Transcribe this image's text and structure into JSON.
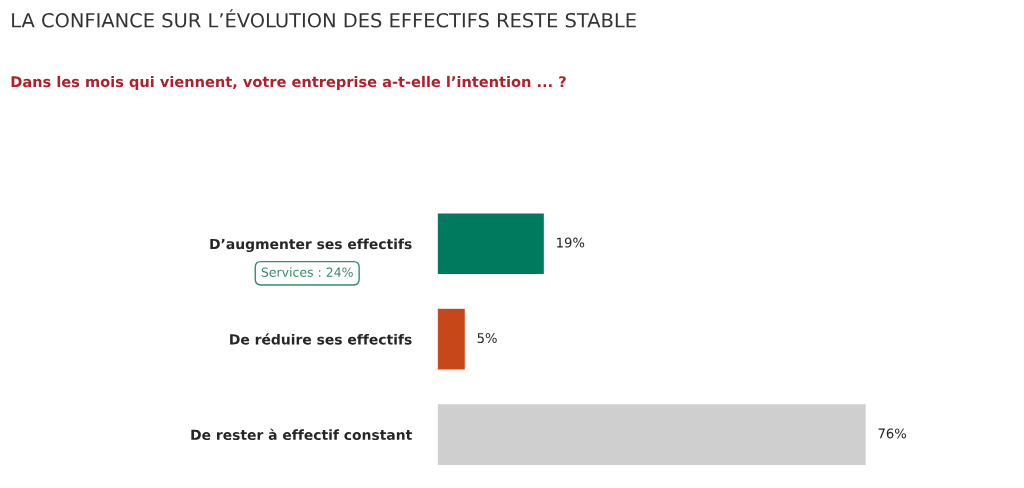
{
  "chart_data": {
    "type": "bar",
    "orientation": "horizontal",
    "title": "LA CONFIANCE SUR L’ÉVOLUTION DES EFFECTIFS RESTE STABLE",
    "subtitle": "Dans les mois qui viennent, votre entreprise a-t-elle l’intention ... ?",
    "categories": [
      "D’augmenter ses effectifs",
      "De réduire ses effectifs",
      "De rester à effectif constant"
    ],
    "values": [
      19,
      5,
      76
    ],
    "colors": [
      "#007a5e",
      "#c8471a",
      "#d0cfcf"
    ],
    "value_labels": [
      "19%",
      "5%",
      "76%"
    ],
    "annotations": [
      "Services : 24%"
    ],
    "grid": false,
    "legend": false
  }
}
